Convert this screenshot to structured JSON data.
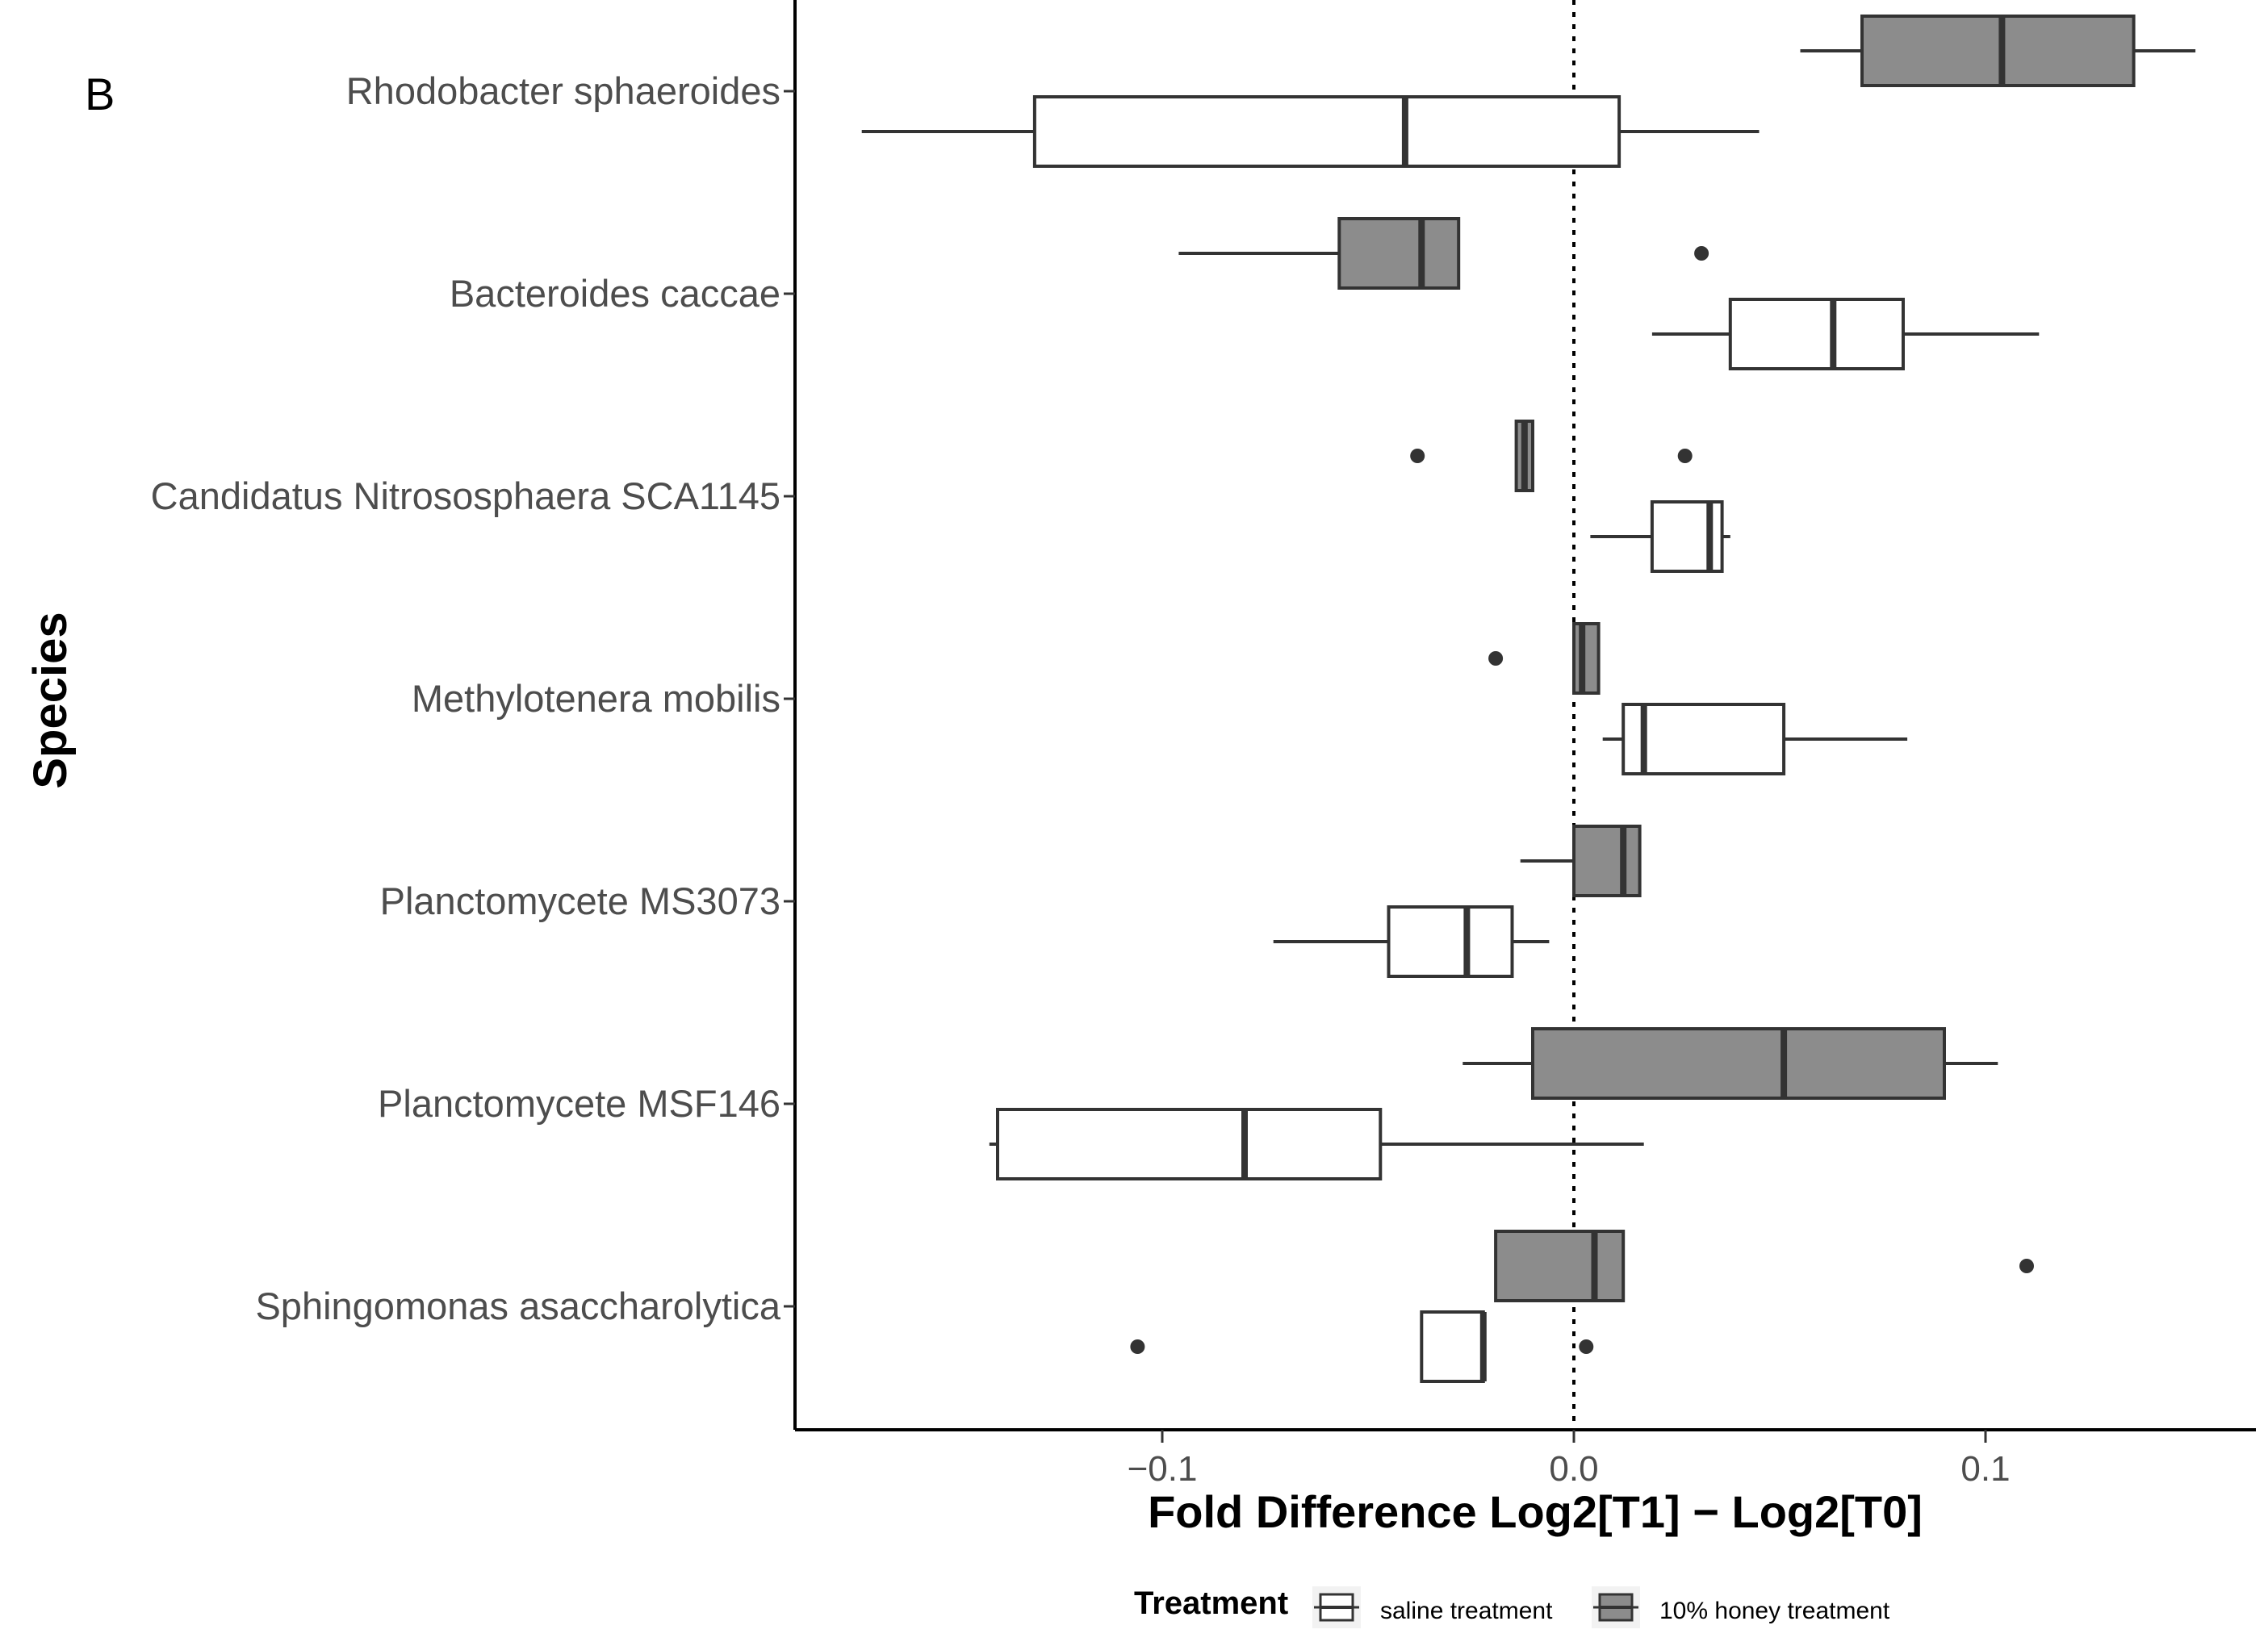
{
  "panel_label": "B",
  "chart_data": {
    "type": "boxplot",
    "orientation": "horizontal",
    "xlabel": "Fold Difference Log2[T1] − Log2[T0]",
    "ylabel": "Species",
    "xlim": [
      -0.19,
      0.165
    ],
    "xticks": [
      -0.1,
      0.0,
      0.1
    ],
    "xtick_labels": [
      "−0.1",
      "0.0",
      "0.1"
    ],
    "reference_line": {
      "x": 0.0,
      "style": "dotted"
    },
    "categories": [
      "Rhodobacter sphaeroides",
      "Bacteroides caccae",
      "Candidatus Nitrososphaera SCA1145",
      "Methylotenera mobilis",
      "Planctomycete MS3073",
      "Planctomycete MSF146",
      "Sphingomonas asaccharolytica"
    ],
    "series": [
      {
        "name": "saline treatment",
        "color": "#ffffff",
        "boxes": [
          {
            "category": "Rhodobacter sphaeroides",
            "min": -0.173,
            "q1": -0.131,
            "median": -0.041,
            "q3": 0.011,
            "max": 0.045,
            "outliers": []
          },
          {
            "category": "Bacteroides caccae",
            "min": 0.019,
            "q1": 0.038,
            "median": 0.063,
            "q3": 0.08,
            "max": 0.113,
            "outliers": []
          },
          {
            "category": "Candidatus Nitrososphaera SCA1145",
            "min": 0.004,
            "q1": 0.019,
            "median": 0.033,
            "q3": 0.036,
            "max": 0.038,
            "outliers": []
          },
          {
            "category": "Methylotenera mobilis",
            "min": 0.007,
            "q1": 0.012,
            "median": 0.017,
            "q3": 0.051,
            "max": 0.081,
            "outliers": []
          },
          {
            "category": "Planctomycete MS3073",
            "min": -0.073,
            "q1": -0.045,
            "median": -0.026,
            "q3": -0.015,
            "max": -0.006,
            "outliers": []
          },
          {
            "category": "Planctomycete MSF146",
            "min": -0.142,
            "q1": -0.14,
            "median": -0.08,
            "q3": -0.047,
            "max": 0.017,
            "outliers": []
          },
          {
            "category": "Sphingomonas asaccharolytica",
            "min": -0.037,
            "q1": -0.037,
            "median": -0.022,
            "q3": -0.022,
            "max": -0.022,
            "outliers": [
              -0.106,
              0.003
            ]
          }
        ]
      },
      {
        "name": "10% honey treatment",
        "color": "#8c8c8c",
        "boxes": [
          {
            "category": "Rhodobacter sphaeroides",
            "min": 0.055,
            "q1": 0.07,
            "median": 0.104,
            "q3": 0.136,
            "max": 0.151,
            "outliers": []
          },
          {
            "category": "Bacteroides caccae",
            "min": -0.096,
            "q1": -0.057,
            "median": -0.037,
            "q3": -0.028,
            "max": -0.028,
            "outliers": [
              0.031
            ]
          },
          {
            "category": "Candidatus Nitrososphaera SCA1145",
            "min": -0.014,
            "q1": -0.014,
            "median": -0.012,
            "q3": -0.01,
            "max": -0.01,
            "outliers": [
              -0.038,
              0.027
            ]
          },
          {
            "category": "Methylotenera mobilis",
            "min": 0.0,
            "q1": 0.0,
            "median": 0.002,
            "q3": 0.006,
            "max": 0.006,
            "outliers": [
              -0.019
            ]
          },
          {
            "category": "Planctomycete MS3073",
            "min": -0.013,
            "q1": 0.0,
            "median": 0.012,
            "q3": 0.016,
            "max": 0.016,
            "outliers": []
          },
          {
            "category": "Planctomycete MSF146",
            "min": -0.027,
            "q1": -0.01,
            "median": 0.051,
            "q3": 0.09,
            "max": 0.103,
            "outliers": []
          },
          {
            "category": "Sphingomonas asaccharolytica",
            "min": -0.019,
            "q1": -0.019,
            "median": 0.005,
            "q3": 0.012,
            "max": 0.012,
            "outliers": [
              0.11
            ]
          }
        ]
      }
    ],
    "legend": {
      "title": "Treatment",
      "position": "bottom",
      "entries": [
        "saline treatment",
        "10% honey treatment"
      ]
    }
  }
}
